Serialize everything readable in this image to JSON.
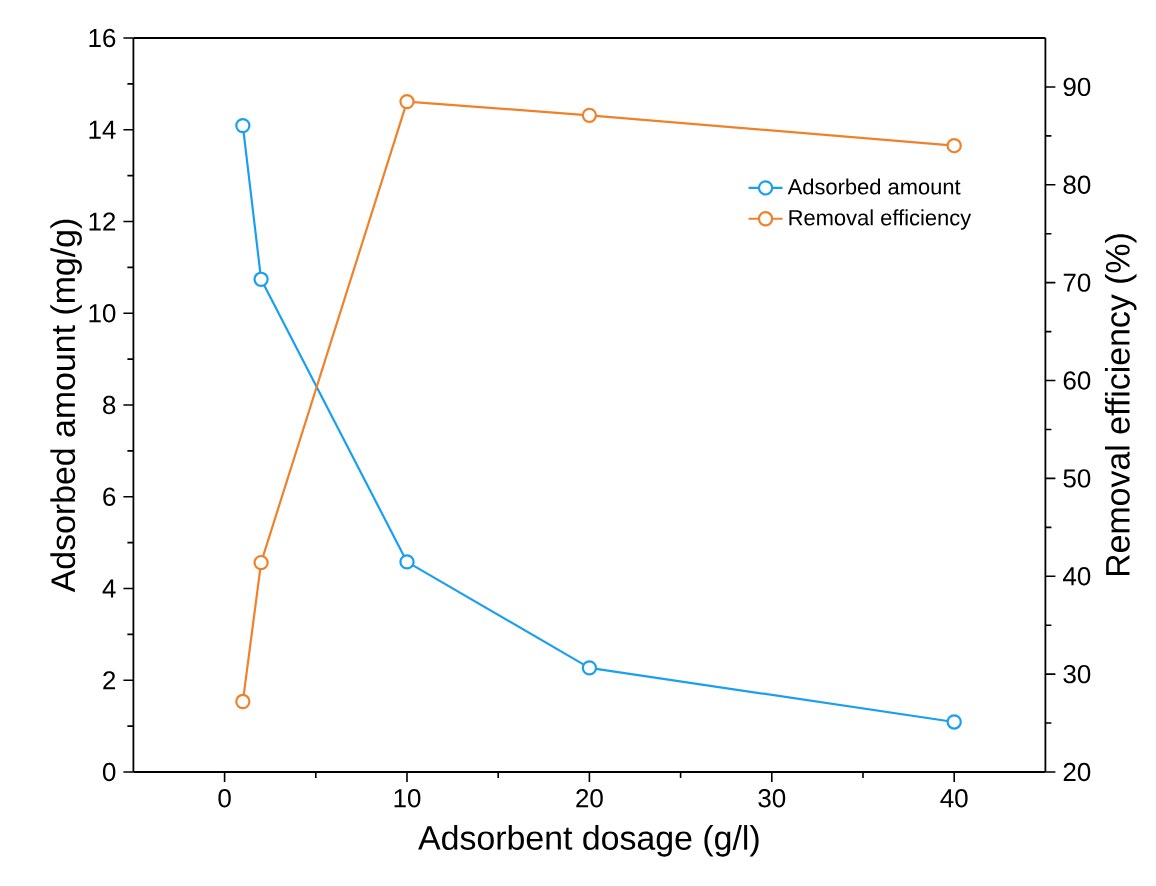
{
  "chart_data": {
    "type": "line",
    "xlabel": "Adsorbent dosage (g/l)",
    "ylabel": "Adsorbed amount (mg/g)",
    "y2label": "Removal efficiency (%)",
    "x": [
      1,
      2,
      10,
      20,
      40
    ],
    "series": [
      {
        "name": "Adsorbed amount",
        "color": "#1a9ff0",
        "values": [
          14.09,
          10.74,
          4.58,
          2.27,
          1.09
        ]
      },
      {
        "name": "Removal efficiency",
        "color": "#f0812a",
        "axis": "y2",
        "values": [
          27.2,
          41.4,
          88.5,
          87.1,
          84.0
        ]
      }
    ],
    "xlim": [
      -5,
      45
    ],
    "xticks": [
      0,
      10,
      20,
      30,
      40
    ],
    "ylim": [
      0,
      16
    ],
    "yticks": [
      0,
      2,
      4,
      6,
      8,
      10,
      12,
      14,
      16
    ],
    "y2lim": [
      20,
      95
    ],
    "y2ticks": [
      20,
      30,
      40,
      50,
      60,
      70,
      80,
      90
    ],
    "legend": "top right",
    "marker": "circle",
    "line_style": "solid",
    "grid": false
  }
}
